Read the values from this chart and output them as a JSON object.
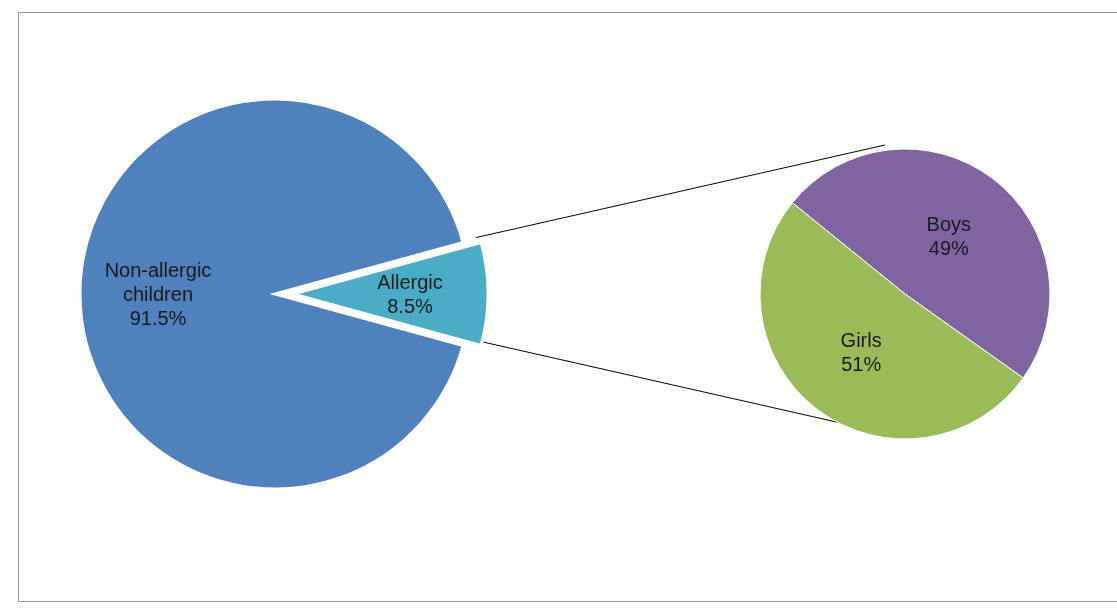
{
  "chart_data": [
    {
      "type": "pie",
      "categories": [
        "Non-allergic children",
        "Allergic"
      ],
      "values": [
        91.5,
        8.5
      ],
      "colors": [
        "#4f81bd",
        "#4bacc6"
      ],
      "value_labels": [
        "91.5%",
        "8.5%"
      ]
    },
    {
      "type": "pie",
      "categories": [
        "Boys",
        "Girls"
      ],
      "values": [
        49,
        51
      ],
      "colors": [
        "#8064a2",
        "#9bbb59"
      ],
      "value_labels": [
        "49%",
        "51%"
      ]
    }
  ]
}
